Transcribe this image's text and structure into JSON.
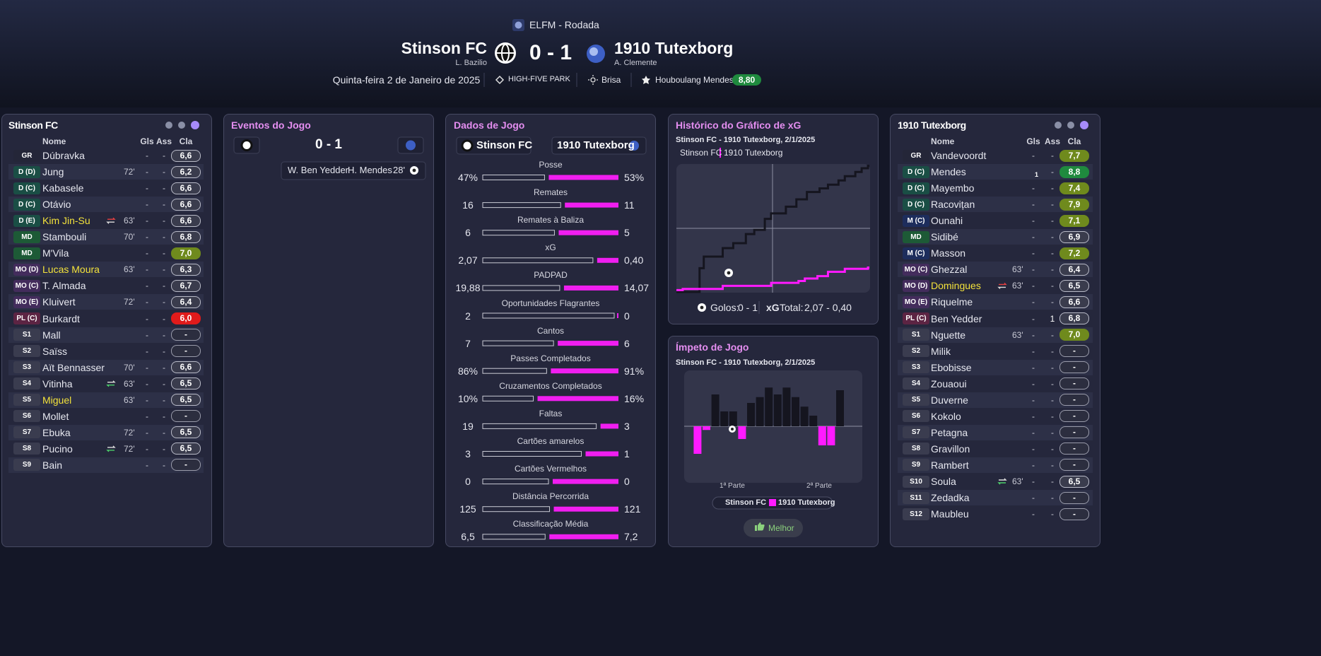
{
  "header": {
    "competition": "ELFM - Rodada",
    "home_team": "Stinson FC",
    "home_manager": "L. Bazilio",
    "score": "0 - 1",
    "away_team": "1910 Tutexborg",
    "away_manager": "A. Clemente",
    "date": "Quinta-feira 2 de Janeiro de 2025",
    "stadium": "HIGH-FIVE PARK",
    "weather": "Brisa",
    "player_of_match": "Houboulang Mendes",
    "player_of_match_rating": "8,80"
  },
  "home_lineup": {
    "title": "Stinson FC",
    "columns": [
      "Nome",
      "Gls",
      "Ass",
      "Cla"
    ],
    "players": [
      {
        "pos": "GR",
        "name": "Dúbravka",
        "gls": "-",
        "ass": "-",
        "rating": "6,6"
      },
      {
        "pos": "D (D)",
        "name": "Jung",
        "sub": "72'",
        "gls": "-",
        "ass": "-",
        "rating": "6,2"
      },
      {
        "pos": "D (C)",
        "name": "Kabasele",
        "gls": "-",
        "ass": "-",
        "rating": "6,6"
      },
      {
        "pos": "D (C)",
        "name": "Otávio",
        "gls": "-",
        "ass": "-",
        "rating": "6,6"
      },
      {
        "pos": "D (E)",
        "name": "Kim Jin-Su",
        "sub": "63'",
        "gls": "-",
        "ass": "-",
        "rating": "6,6",
        "highlight": true
      },
      {
        "pos": "MD",
        "name": "Stambouli",
        "sub": "70'",
        "gls": "-",
        "ass": "-",
        "rating": "6,8"
      },
      {
        "pos": "MD",
        "name": "M'Vila",
        "gls": "-",
        "ass": "-",
        "rating": "7,0"
      },
      {
        "pos": "MO (D)",
        "name": "Lucas Moura",
        "sub": "63'",
        "gls": "-",
        "ass": "-",
        "rating": "6,3",
        "highlight": true
      },
      {
        "pos": "MO (C)",
        "name": "T. Almada",
        "gls": "-",
        "ass": "-",
        "rating": "6,7"
      },
      {
        "pos": "MO (E)",
        "name": "Kluivert",
        "sub": "72'",
        "gls": "-",
        "ass": "-",
        "rating": "6,4"
      },
      {
        "pos": "PL (C)",
        "name": "Burkardt",
        "gls": "-",
        "ass": "-",
        "rating": "6,0"
      },
      {
        "pos": "S1",
        "name": "Mall",
        "gls": "-",
        "ass": "-",
        "rating": "-"
      },
      {
        "pos": "S2",
        "name": "Saïss",
        "gls": "-",
        "ass": "-",
        "rating": "-"
      },
      {
        "pos": "S3",
        "name": "Aït Bennasser",
        "sub": "70'",
        "gls": "-",
        "ass": "-",
        "rating": "6,6"
      },
      {
        "pos": "S4",
        "name": "Vitinha",
        "sub": "63'",
        "gls": "-",
        "ass": "-",
        "rating": "6,5"
      },
      {
        "pos": "S5",
        "name": "Miguel",
        "sub": "63'",
        "gls": "-",
        "ass": "-",
        "rating": "6,5",
        "highlight": true
      },
      {
        "pos": "S6",
        "name": "Mollet",
        "gls": "-",
        "ass": "-",
        "rating": "-"
      },
      {
        "pos": "S7",
        "name": "Ebuka",
        "sub": "72'",
        "gls": "-",
        "ass": "-",
        "rating": "6,5"
      },
      {
        "pos": "S8",
        "name": "Pucino",
        "sub": "72'",
        "gls": "-",
        "ass": "-",
        "rating": "6,5"
      },
      {
        "pos": "S9",
        "name": "Bain",
        "gls": "-",
        "ass": "-",
        "rating": "-"
      }
    ]
  },
  "away_lineup": {
    "title": "1910 Tutexborg",
    "columns": [
      "Nome",
      "Gls",
      "Ass",
      "Cla"
    ],
    "players": [
      {
        "pos": "GR",
        "name": "Vandevoordt",
        "gls": "-",
        "ass": "-",
        "rating": "7,7"
      },
      {
        "pos": "D (C)",
        "name": "Mendes",
        "gls": "1",
        "ass": "-",
        "rating": "8,8"
      },
      {
        "pos": "D (C)",
        "name": "Mayembo",
        "gls": "-",
        "ass": "-",
        "rating": "7,4"
      },
      {
        "pos": "D (C)",
        "name": "Racovițan",
        "gls": "-",
        "ass": "-",
        "rating": "7,9"
      },
      {
        "pos": "M (C)",
        "name": "Ounahi",
        "gls": "-",
        "ass": "-",
        "rating": "7,1"
      },
      {
        "pos": "MD",
        "name": "Sidibé",
        "gls": "-",
        "ass": "-",
        "rating": "6,9"
      },
      {
        "pos": "M (C)",
        "name": "Masson",
        "gls": "-",
        "ass": "-",
        "rating": "7,2"
      },
      {
        "pos": "MO (C)",
        "name": "Ghezzal",
        "sub": "63'",
        "gls": "-",
        "ass": "-",
        "rating": "6,4"
      },
      {
        "pos": "MO (D)",
        "name": "Domingues",
        "sub": "63'",
        "gls": "-",
        "ass": "-",
        "rating": "6,5",
        "highlight": true
      },
      {
        "pos": "MO (E)",
        "name": "Riquelme",
        "gls": "-",
        "ass": "-",
        "rating": "6,6"
      },
      {
        "pos": "PL (C)",
        "name": "Ben Yedder",
        "gls": "-",
        "ass": "1",
        "rating": "6,8"
      },
      {
        "pos": "S1",
        "name": "Nguette",
        "sub": "63'",
        "gls": "-",
        "ass": "-",
        "rating": "7,0"
      },
      {
        "pos": "S2",
        "name": "Milik",
        "gls": "-",
        "ass": "-",
        "rating": "-"
      },
      {
        "pos": "S3",
        "name": "Ebobisse",
        "gls": "-",
        "ass": "-",
        "rating": "-"
      },
      {
        "pos": "S4",
        "name": "Zouaoui",
        "gls": "-",
        "ass": "-",
        "rating": "-"
      },
      {
        "pos": "S5",
        "name": "Duverne",
        "gls": "-",
        "ass": "-",
        "rating": "-"
      },
      {
        "pos": "S6",
        "name": "Kokolo",
        "gls": "-",
        "ass": "-",
        "rating": "-"
      },
      {
        "pos": "S7",
        "name": "Petagna",
        "gls": "-",
        "ass": "-",
        "rating": "-"
      },
      {
        "pos": "S8",
        "name": "Gravillon",
        "gls": "-",
        "ass": "-",
        "rating": "-"
      },
      {
        "pos": "S9",
        "name": "Rambert",
        "gls": "-",
        "ass": "-",
        "rating": "-"
      },
      {
        "pos": "S10",
        "name": "Soula",
        "sub": "63'",
        "gls": "-",
        "ass": "-",
        "rating": "6,5"
      },
      {
        "pos": "S11",
        "name": "Zedadka",
        "gls": "-",
        "ass": "-",
        "rating": "-"
      },
      {
        "pos": "S12",
        "name": "Maubleu",
        "gls": "-",
        "ass": "-",
        "rating": "-"
      }
    ]
  },
  "events": {
    "title": "Eventos do Jogo",
    "score": "0 - 1",
    "items": [
      {
        "assist": "W. Ben Yedder",
        "scorer": "H. Mendes",
        "minute": "28'"
      }
    ]
  },
  "match_stats": {
    "title": "Dados de Jogo",
    "home_team": "Stinson FC",
    "away_team": "1910 Tutexborg",
    "rows": [
      {
        "label": "Posse",
        "home": "47%",
        "away": "53%"
      },
      {
        "label": "Remates",
        "home": "16",
        "away": "11"
      },
      {
        "label": "Remates à Baliza",
        "home": "6",
        "away": "5"
      },
      {
        "label": "xG",
        "home": "2,07",
        "away": "0,40"
      },
      {
        "label": "PADPAD",
        "home": "19,88",
        "away": "14,07"
      },
      {
        "label": "Oportunidades Flagrantes",
        "home": "2",
        "away": "0"
      },
      {
        "label": "Cantos",
        "home": "7",
        "away": "6"
      },
      {
        "label": "Passes Completados",
        "home": "86%",
        "away": "91%"
      },
      {
        "label": "Cruzamentos Completados",
        "home": "10%",
        "away": "16%"
      },
      {
        "label": "Faltas",
        "home": "19",
        "away": "3"
      },
      {
        "label": "Cartões amarelos",
        "home": "3",
        "away": "1"
      },
      {
        "label": "Cartões Vermelhos",
        "home": "0",
        "away": "0"
      },
      {
        "label": "Distância Percorrida",
        "home": "125",
        "away": "121"
      },
      {
        "label": "Classificação Média",
        "home": "6,5",
        "away": "7,2"
      }
    ]
  },
  "xg_chart": {
    "type": "line",
    "title": "Histórico do Gráfico de xG",
    "subtitle": "Stinson FC - 1910 Tutexborg, 2/1/2025",
    "xlim": [
      0,
      92
    ],
    "ylim": [
      0,
      2.1
    ],
    "series": [
      {
        "name": "Stinson FC",
        "color": "#15151f",
        "x": [
          0,
          11,
          13,
          22,
          27,
          33,
          37,
          42,
          45,
          52,
          57,
          62,
          68,
          72,
          77,
          80,
          85,
          88,
          91
        ],
        "values": [
          0,
          0.39,
          0.58,
          0.72,
          0.8,
          0.95,
          1.02,
          1.2,
          1.29,
          1.4,
          1.52,
          1.64,
          1.7,
          1.76,
          1.83,
          1.9,
          1.97,
          2.03,
          2.07
        ]
      },
      {
        "name": "1910 Tutexborg",
        "color": "#ff1aff",
        "x": [
          0,
          3,
          22,
          45,
          58,
          61,
          67,
          72,
          80,
          91
        ],
        "values": [
          0.03,
          0.05,
          0.1,
          0.15,
          0.18,
          0.22,
          0.26,
          0.33,
          0.38,
          0.4
        ]
      }
    ],
    "goals_label": "Golos:",
    "goals": "0 - 1",
    "xg_label": "xG",
    "xg_total_label": "Total:",
    "xg_total": "2,07 - 0,40"
  },
  "momentum_chart": {
    "type": "bar",
    "title": "Ímpeto de Jogo",
    "subtitle": "Stinson FC - 1910 Tutexborg, 2/1/2025",
    "ylim": [
      -1,
      1
    ],
    "x_labels": [
      "1ª Parte",
      "2ª Parte"
    ],
    "series": [
      {
        "name": "Stinson FC",
        "color": "#15151f",
        "values": [
          0,
          0,
          0,
          0.6,
          0.28,
          0.28,
          0,
          0.44,
          0.55,
          0.73,
          0.6,
          0.73,
          0.55,
          0.37,
          0.2,
          0,
          0,
          0.68,
          0,
          0
        ]
      },
      {
        "name": "1910 Tutexborg",
        "color": "#ff1aff",
        "values": [
          0,
          -0.52,
          -0.07,
          0,
          0,
          0,
          -0.24,
          0,
          0,
          0,
          0,
          0,
          0,
          0,
          0,
          -0.36,
          -0.36,
          0,
          0,
          0
        ]
      }
    ],
    "button": "Melhor"
  }
}
